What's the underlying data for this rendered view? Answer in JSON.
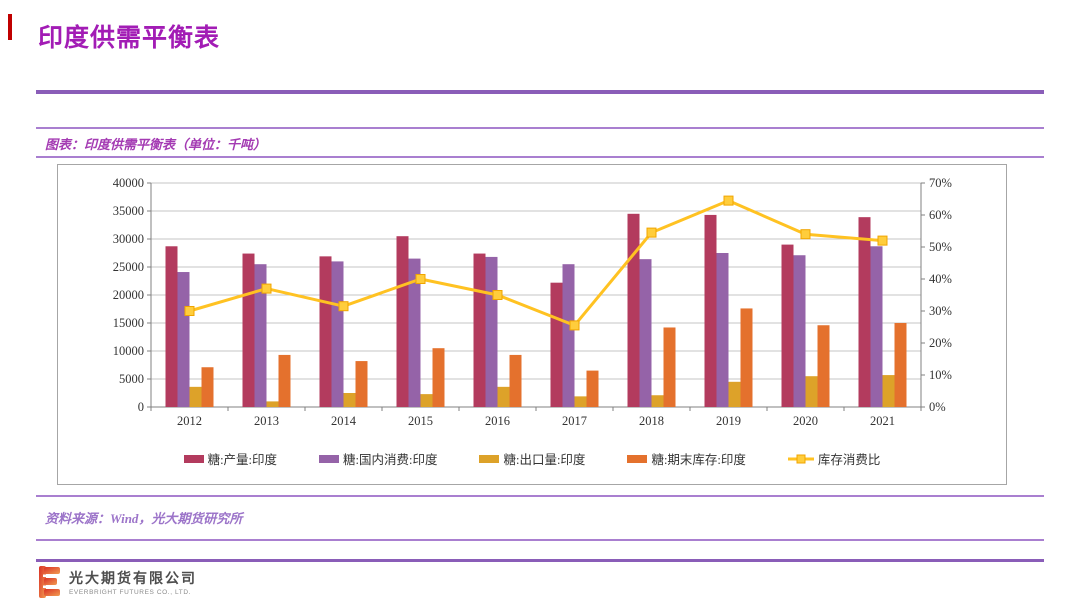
{
  "header": {
    "title": "印度供需平衡表"
  },
  "caption": {
    "text": "图表：印度供需平衡表（单位：千吨）"
  },
  "chart_data": {
    "type": "bar",
    "subtype": "grouped-bars-with-line",
    "title": "印度供需平衡表（单位：千吨）",
    "categories": [
      "2012",
      "2013",
      "2014",
      "2015",
      "2016",
      "2017",
      "2018",
      "2019",
      "2020",
      "2021"
    ],
    "series": [
      {
        "name": "糖:产量:印度",
        "type": "bar",
        "axis": "left",
        "color": "#B33B5E",
        "values": [
          28700,
          27400,
          26900,
          30500,
          27400,
          22200,
          34500,
          34300,
          29000,
          33900
        ]
      },
      {
        "name": "糖:国内消费:印度",
        "type": "bar",
        "axis": "left",
        "color": "#9563A8",
        "values": [
          24100,
          25500,
          26000,
          26500,
          26800,
          25500,
          26400,
          27500,
          27100,
          28700
        ]
      },
      {
        "name": "糖:出口量:印度",
        "type": "bar",
        "axis": "left",
        "color": "#DDA229",
        "values": [
          3600,
          1000,
          2500,
          2300,
          3600,
          1900,
          2100,
          4500,
          5500,
          5700
        ]
      },
      {
        "name": "糖:期末库存:印度",
        "type": "bar",
        "axis": "left",
        "color": "#E4712D",
        "values": [
          7100,
          9300,
          8200,
          10500,
          9300,
          6500,
          14200,
          17600,
          14600,
          15000
        ]
      },
      {
        "name": "库存消费比",
        "type": "line",
        "axis": "right",
        "color": "#FFC222",
        "marker": "square",
        "marker_fill": "#FFCD3C",
        "marker_stroke": "#F0A500",
        "values": [
          30,
          37,
          31.5,
          40,
          35,
          25.5,
          54.5,
          64.5,
          54,
          52
        ]
      }
    ],
    "left_axis": {
      "min": 0,
      "max": 40000,
      "step": 5000,
      "labels": [
        "0",
        "5000",
        "10000",
        "15000",
        "20000",
        "25000",
        "30000",
        "35000",
        "40000"
      ]
    },
    "right_axis": {
      "min": 0,
      "max": 70,
      "step": 10,
      "unit": "%",
      "labels": [
        "0%",
        "10%",
        "20%",
        "30%",
        "40%",
        "50%",
        "60%",
        "70%"
      ]
    },
    "grid": "horizontal",
    "legend_position": "bottom"
  },
  "source": {
    "text": "资料来源：Wind，光大期货研究所"
  },
  "footer": {
    "company_cn": "光大期货有限公司",
    "company_en": "EVERBRIGHT FUTURES CO., LTD."
  }
}
